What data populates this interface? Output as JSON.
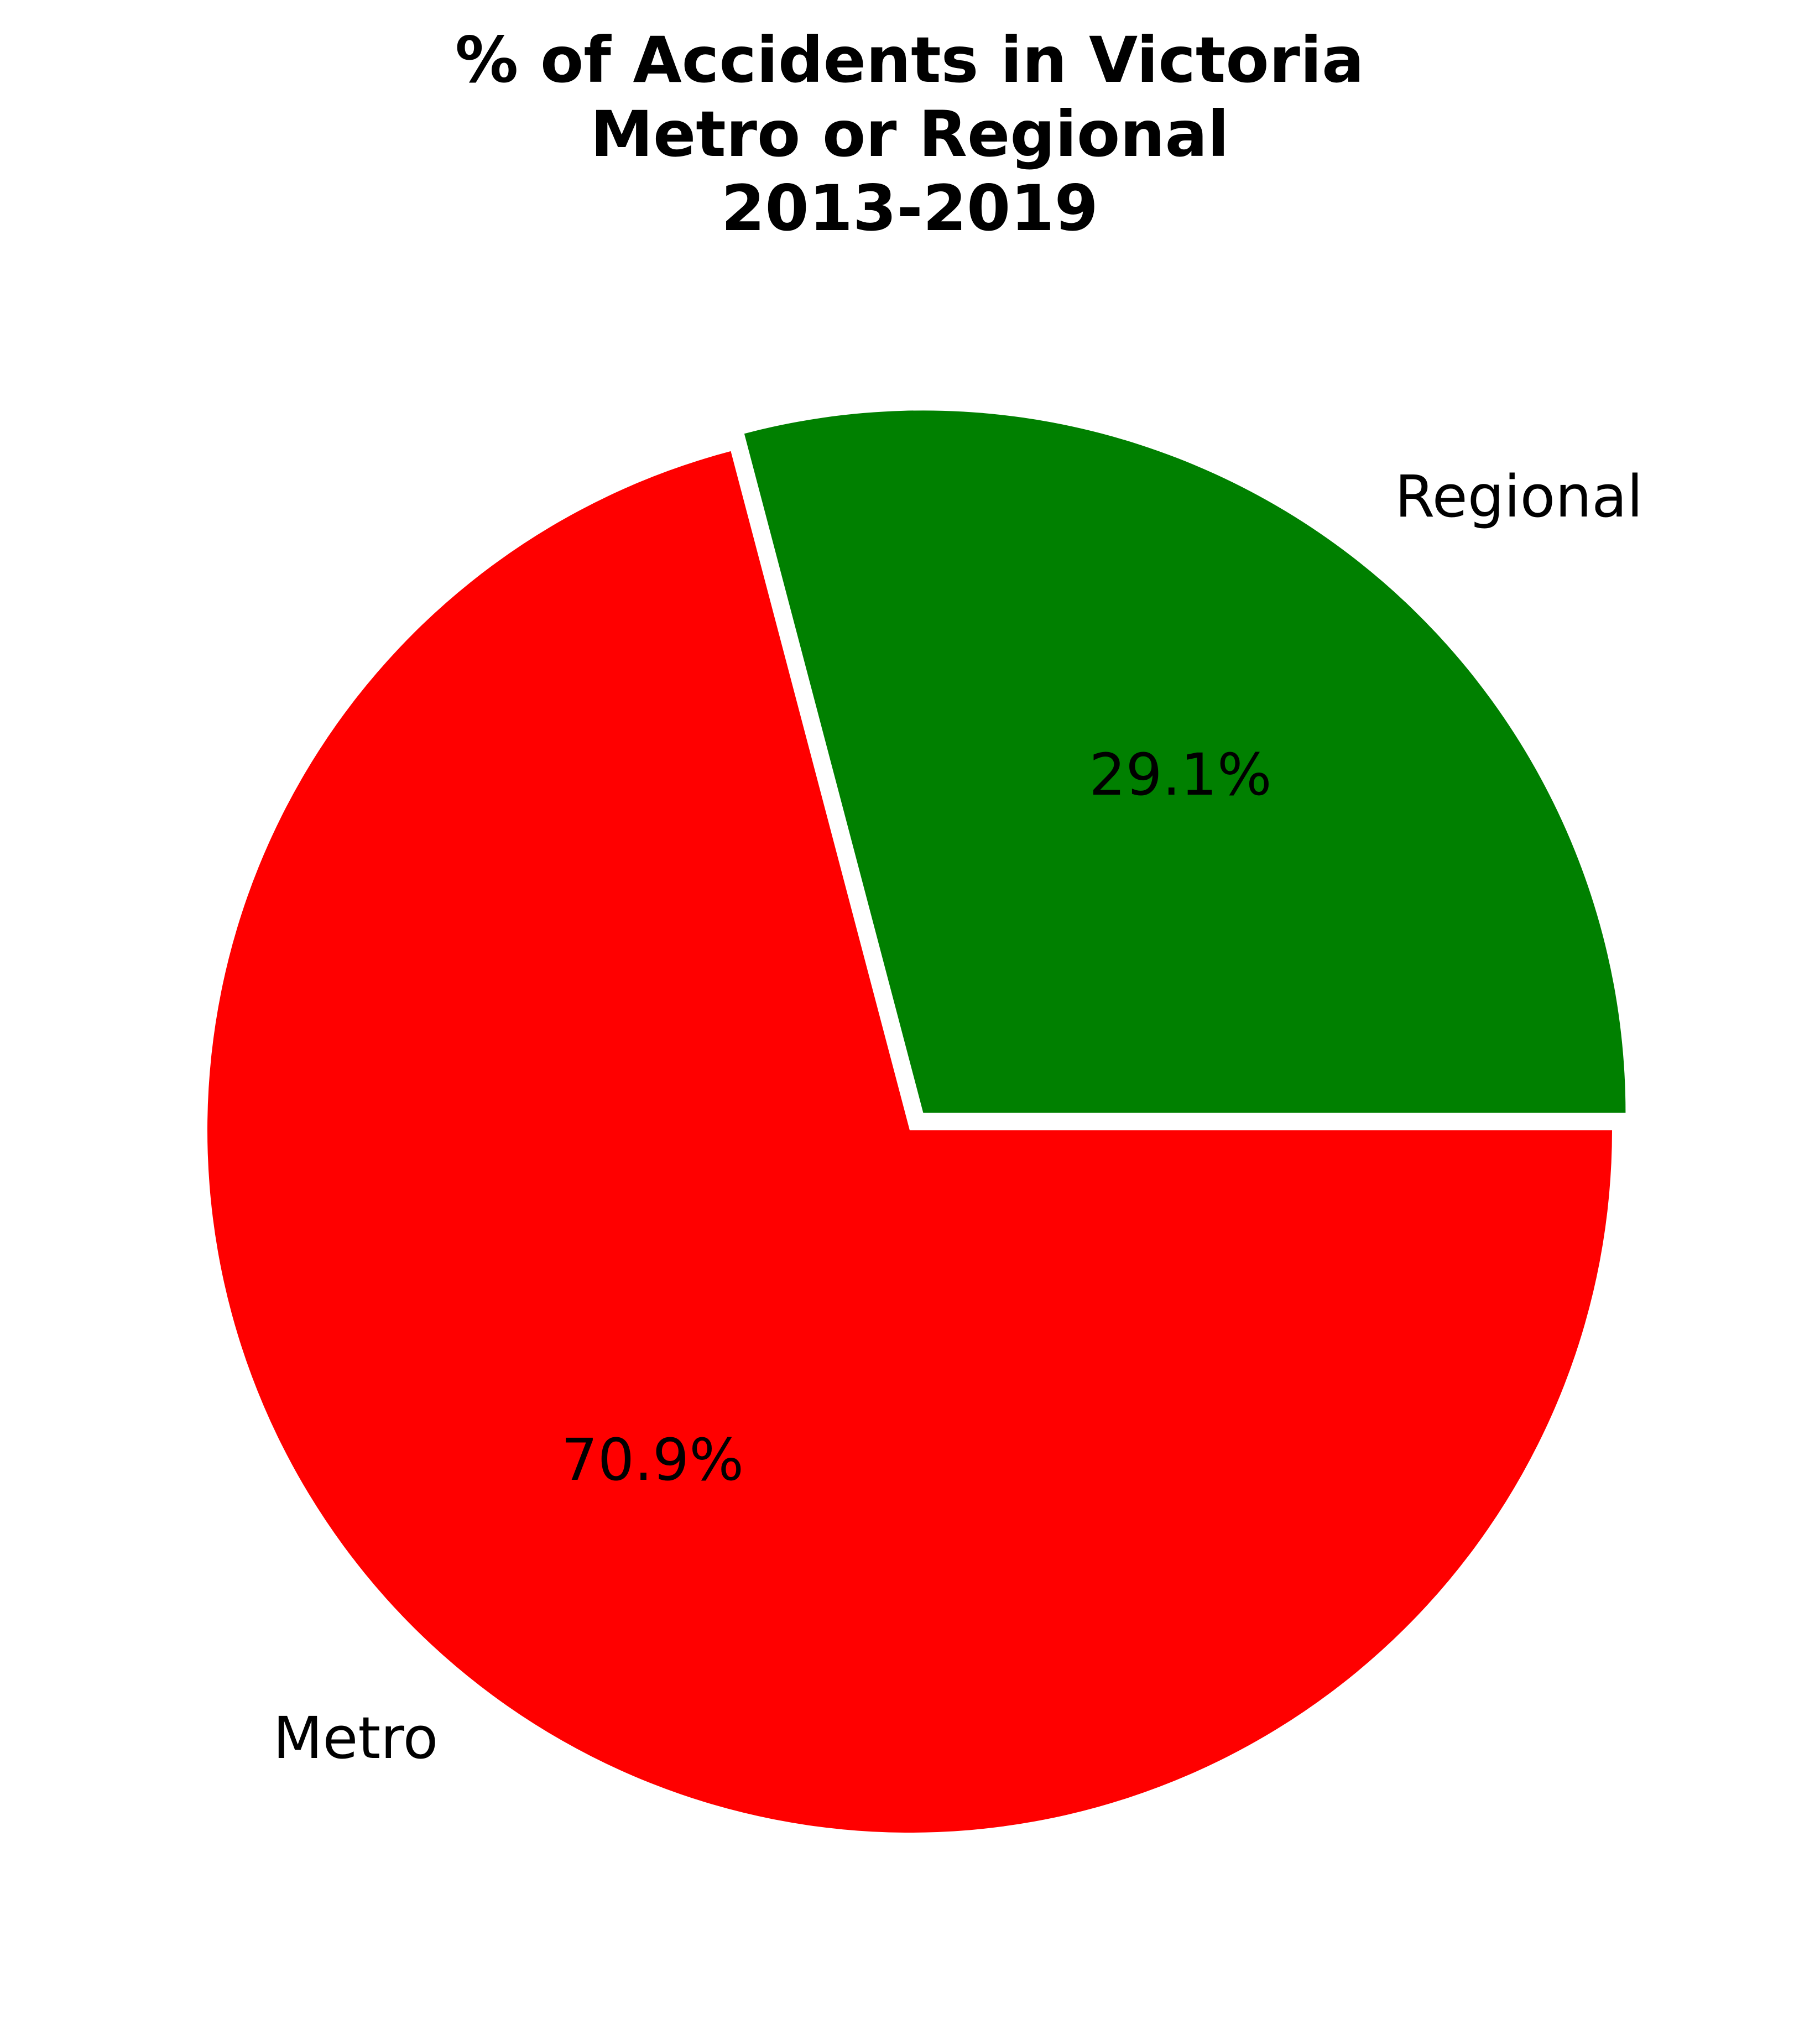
{
  "chart_data": {
    "type": "pie",
    "title": [
      "% of Accidents in Victoria",
      "Metro or Regional",
      "2013-2019"
    ],
    "slices": [
      {
        "label": "Metro",
        "value": 70.9,
        "pct_label": "70.9%",
        "color": "#ff0000",
        "exploded": false
      },
      {
        "label": "Regional",
        "value": 29.1,
        "pct_label": "29.1%",
        "color": "#008000",
        "exploded": true
      }
    ],
    "start_angle": 0,
    "direction": "clockwise",
    "legend": "none"
  }
}
